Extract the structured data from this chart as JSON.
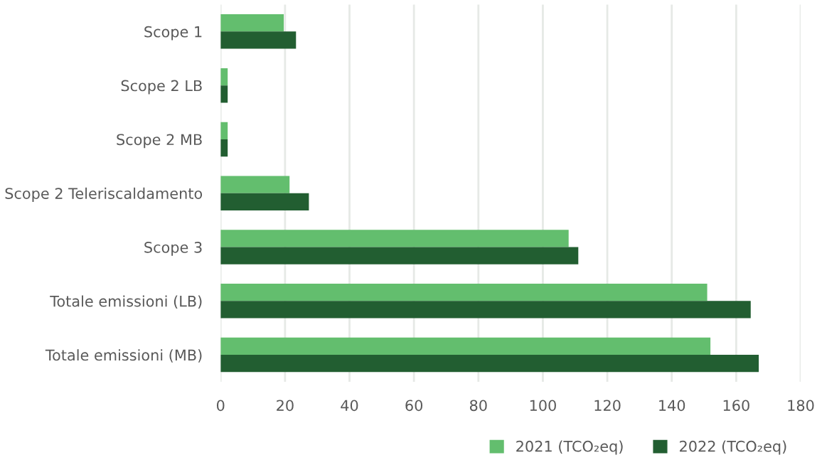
{
  "chart_data": {
    "type": "bar",
    "orientation": "horizontal",
    "categories": [
      "Scope 1",
      "Scope 2 LB",
      "Scope 2 MB",
      "Scope 2 Teleriscaldamento",
      "Scope 3",
      "Totale emissioni (LB)",
      "Totale emissioni (MB)"
    ],
    "series": [
      {
        "name": "2021 (TCO₂eq)",
        "color": "#63be6e",
        "values": [
          19.6,
          2.2,
          2.2,
          21.4,
          108,
          151,
          152
        ]
      },
      {
        "name": "2022 (TCO₂eq)",
        "color": "#225e31",
        "values": [
          23.4,
          2.2,
          2.2,
          27.4,
          111,
          164.5,
          167
        ]
      }
    ],
    "xlim": [
      0,
      180
    ],
    "xticks": [
      0,
      20,
      40,
      60,
      80,
      100,
      120,
      140,
      160,
      180
    ],
    "grid": "x",
    "legend": "bottom right"
  }
}
